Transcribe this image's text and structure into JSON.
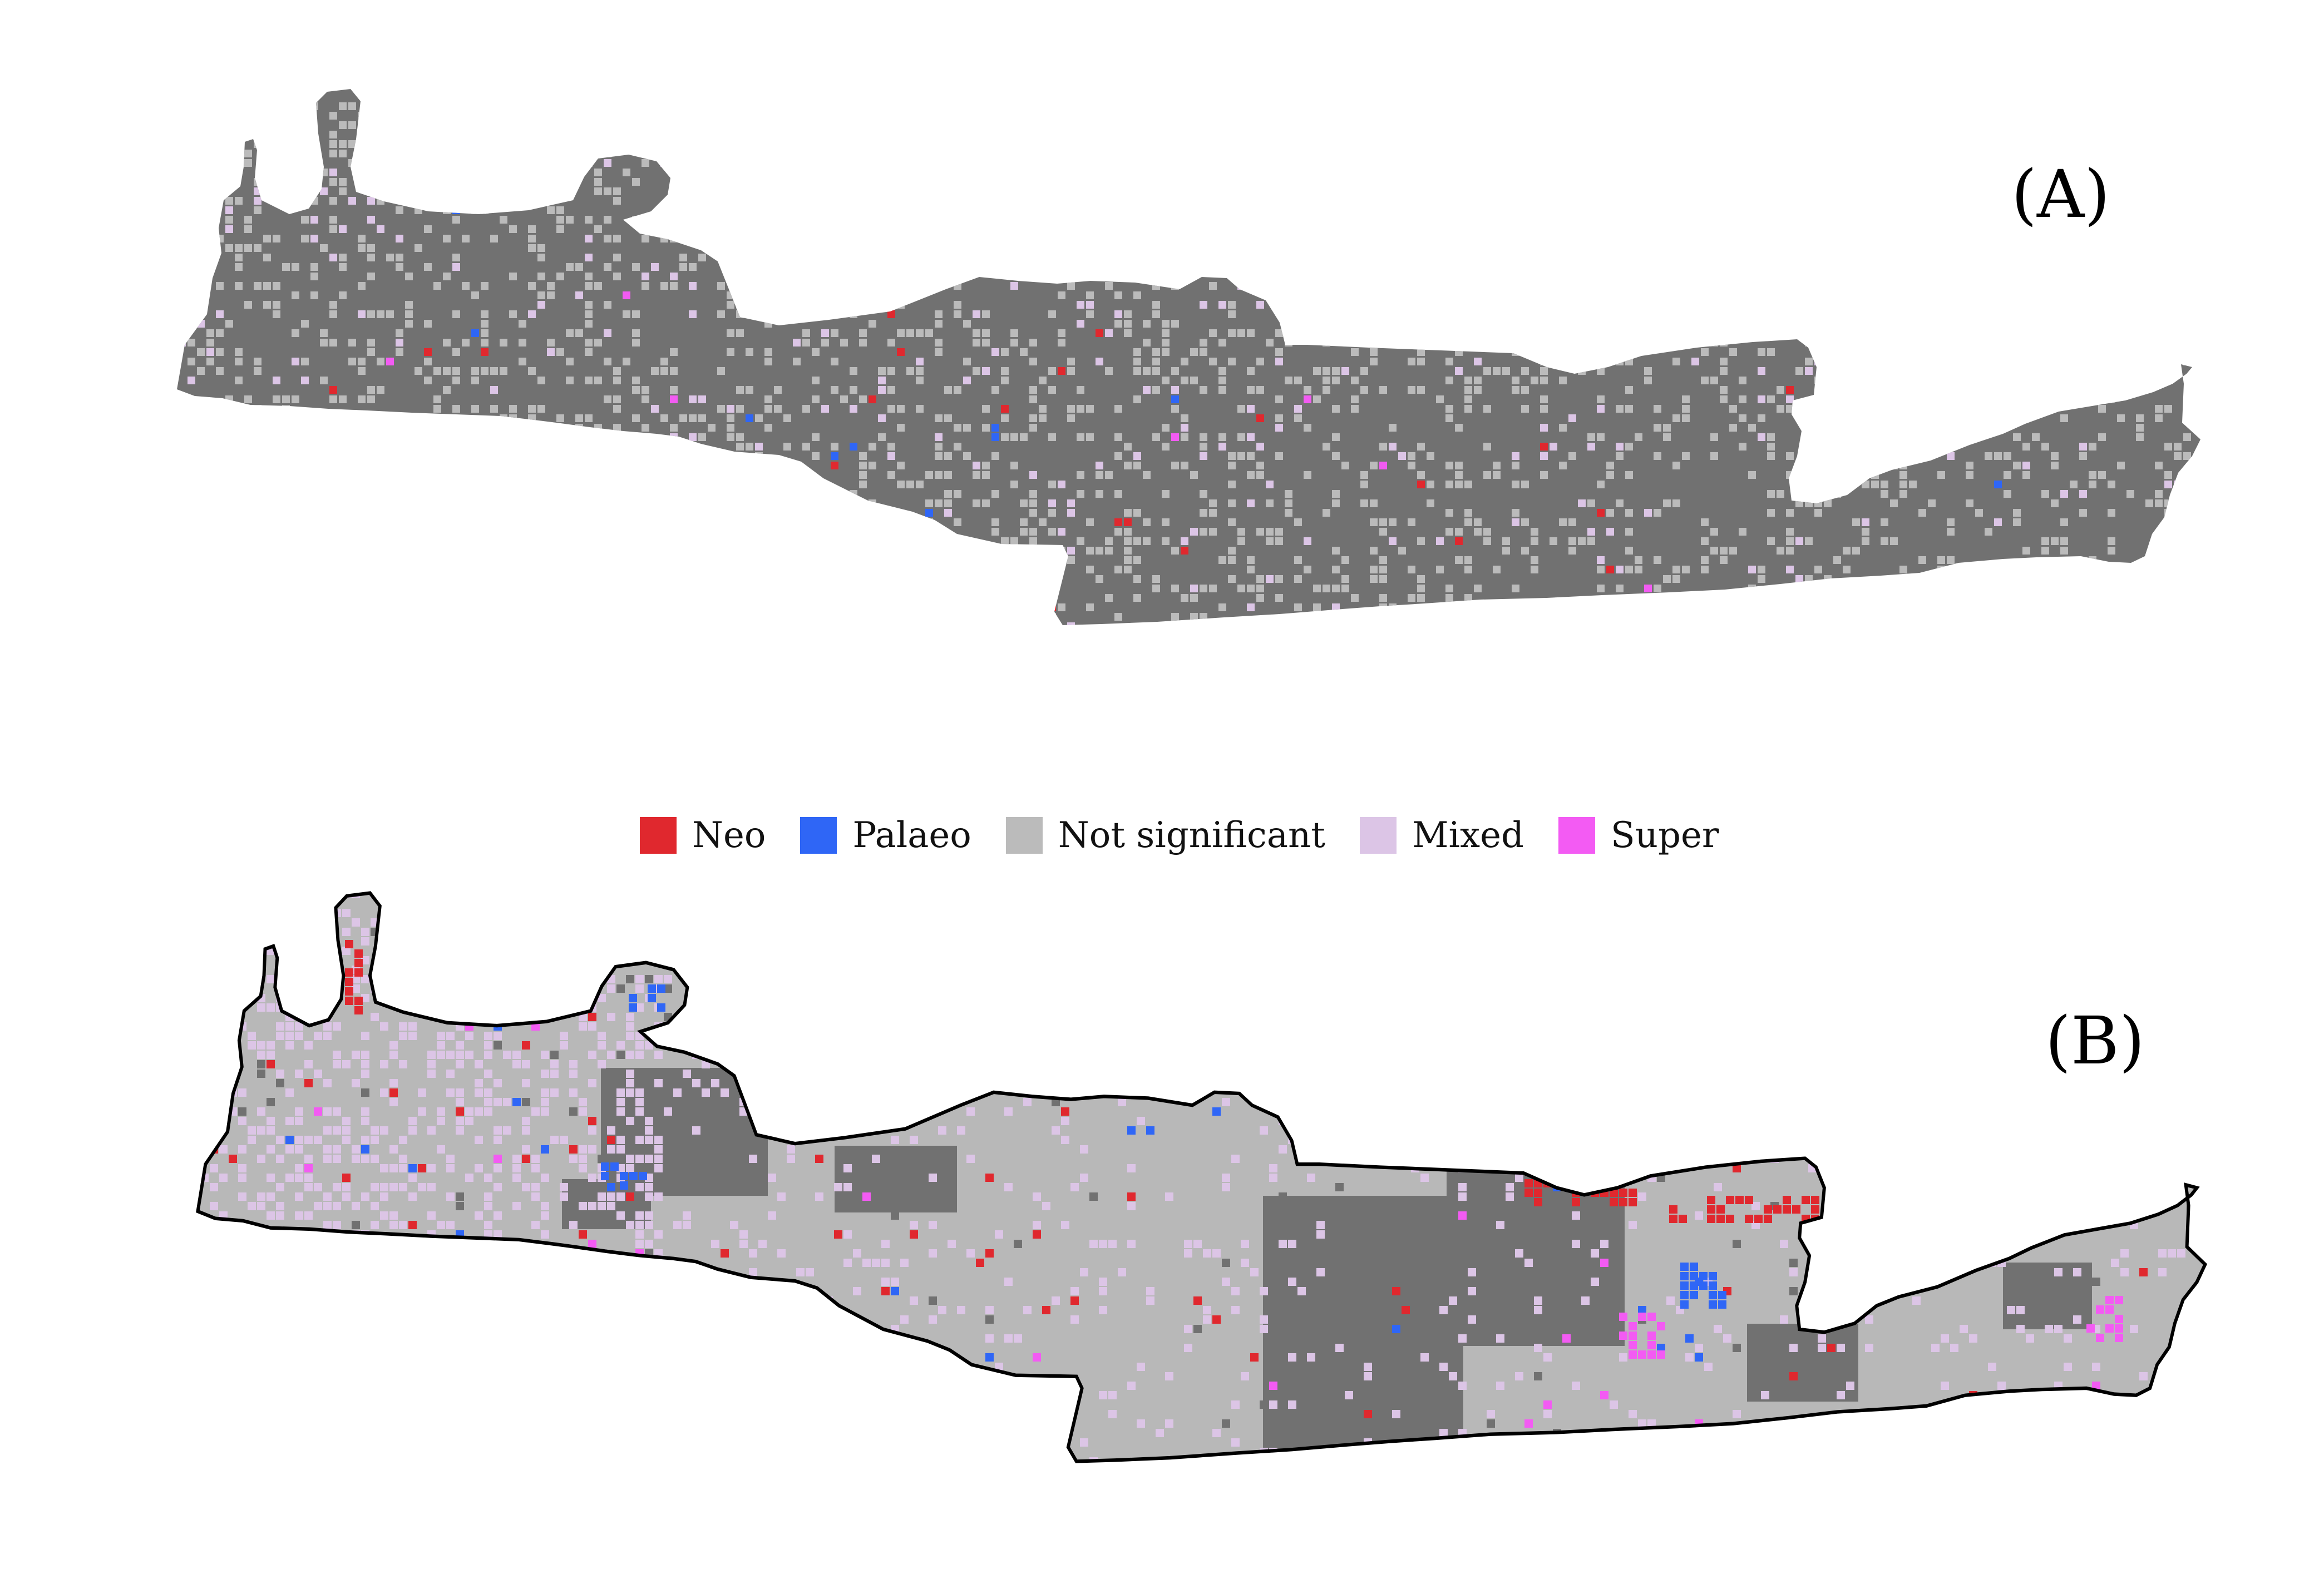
{
  "panels": [
    {
      "label": "(A)",
      "base_color": "#717171"
    },
    {
      "label": "(B)",
      "base_color": "#b8b8b8",
      "dark_color": "#717171",
      "outline": "#000000"
    }
  ],
  "legend": [
    {
      "label": "Neo",
      "color": "#e0282e"
    },
    {
      "label": "Palaeo",
      "color": "#2f66f6"
    },
    {
      "label": "Not significant",
      "color": "#bbbbbb"
    },
    {
      "label": "Mixed",
      "color": "#dcc5e6"
    },
    {
      "label": "Super",
      "color": "#f35bf3"
    }
  ]
}
